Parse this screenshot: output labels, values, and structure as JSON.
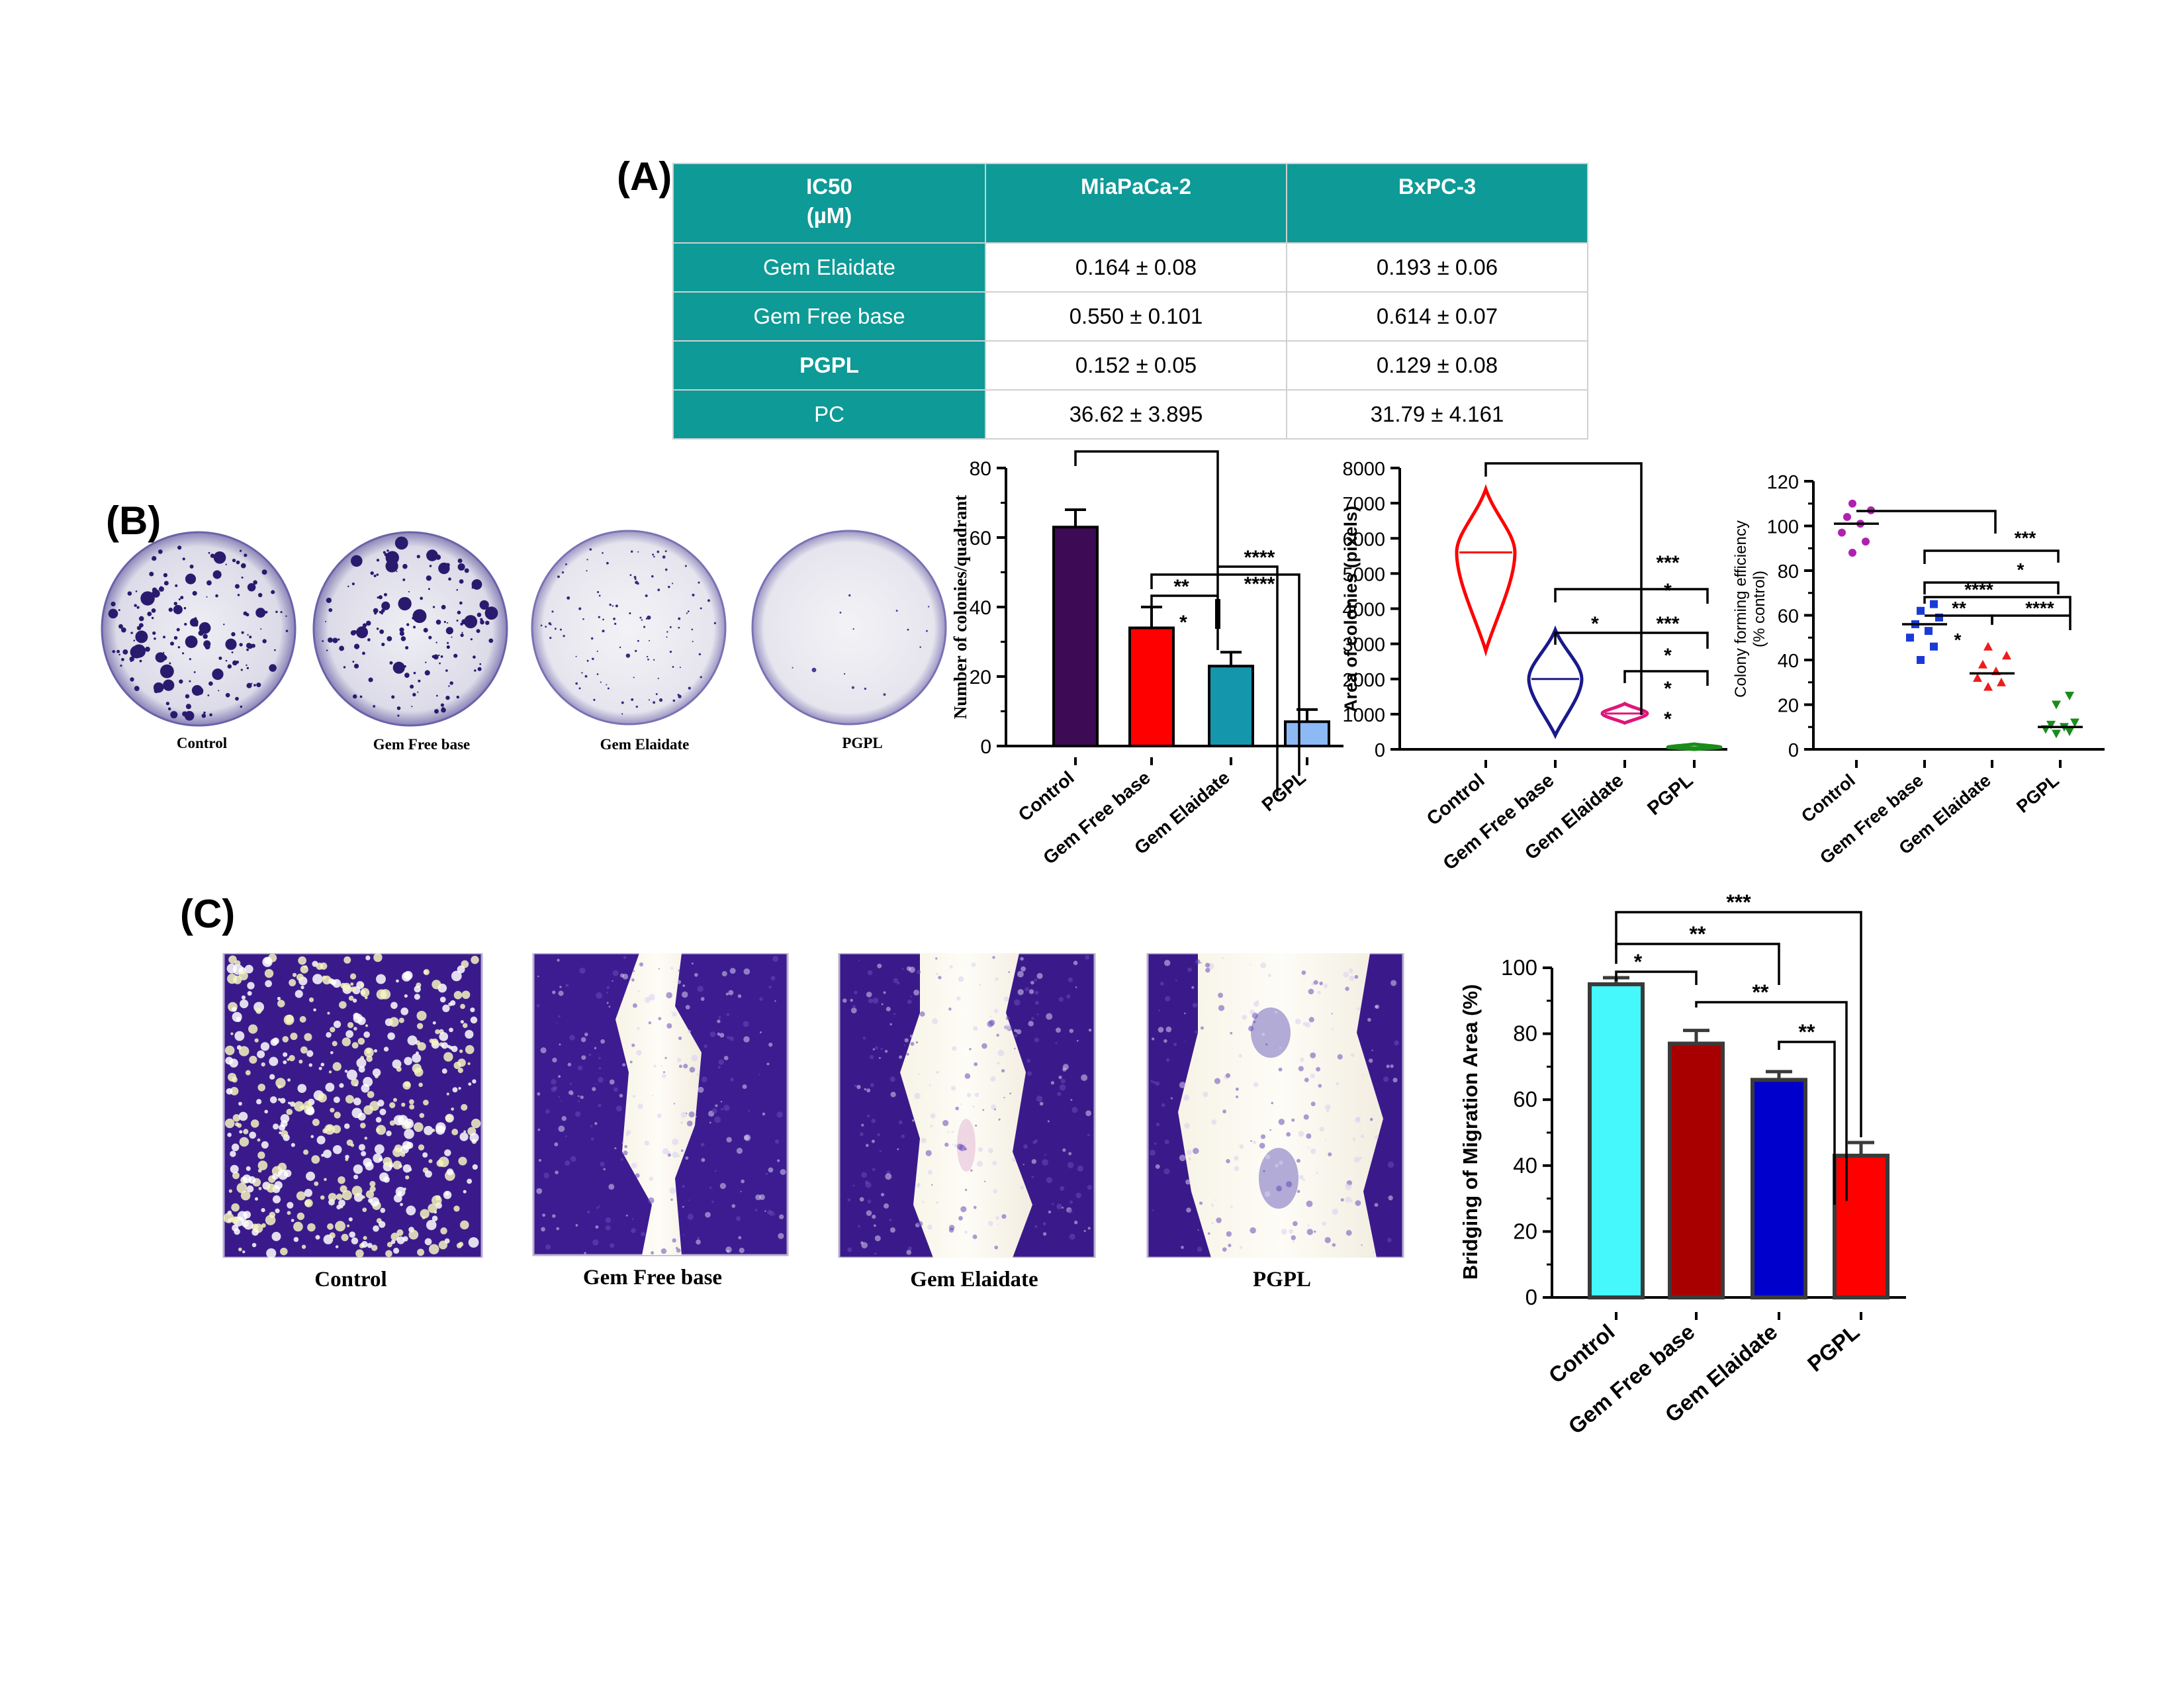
{
  "panels": {
    "a": "(A)",
    "b": "(B)",
    "c": "(C)"
  },
  "ic50_table": {
    "header": {
      "corner_line1": "IC50",
      "corner_line2": "(µM)",
      "col1": "MiaPaCa-2",
      "col2": "BxPC-3"
    },
    "rows": [
      {
        "name": "Gem Elaidate",
        "v1": "0.164 ± 0.08",
        "v2": "0.193 ± 0.06",
        "bold": false
      },
      {
        "name": "Gem Free base",
        "v1": "0.550 ± 0.101",
        "v2": "0.614 ± 0.07",
        "bold": false
      },
      {
        "name": "PGPL",
        "v1": "0.152 ± 0.05",
        "v2": "0.129 ± 0.08",
        "bold": true
      },
      {
        "name": "PC",
        "v1": "36.62 ± 3.895",
        "v2": "31.79 ± 4.161",
        "bold": false
      }
    ]
  },
  "dish_labels": [
    "Control",
    "Gem Free base",
    "Gem Elaidate",
    "PGPL"
  ],
  "wound_labels": [
    "Control",
    "Gem Free base",
    "Gem Elaidate",
    "PGPL"
  ],
  "colors": {
    "teal": "#0e9a96",
    "control_bar": "#3d0a55",
    "free_base": "#ff0000",
    "elaidate": "#1496ac",
    "pgpl": "#8db9f5",
    "violin_control": "#ff0000",
    "violin_free": "#1a1a8c",
    "violin_elaidate": "#e0157a",
    "violin_pgpl": "#1a8c1a",
    "dot_control": "#b020b0",
    "dot_free": "#1a3ad8",
    "dot_elaidate": "#ee1c1c",
    "dot_pgpl": "#1a8c1a",
    "c_control": "#44f8fc",
    "c_free": "#a80000",
    "c_elaidate": "#0000cc",
    "c_pgpl": "#ff0000"
  },
  "chart_data": [
    {
      "type": "bar",
      "panel": "B",
      "categories": [
        "Control",
        "Gem Free base",
        "Gem Elaidate",
        "PGPL"
      ],
      "values": [
        63,
        34,
        23,
        7
      ],
      "errors": [
        5,
        6,
        4,
        3.5
      ],
      "ylabel": "Number of colonies/quadrant",
      "ylim": [
        0,
        80
      ],
      "yticks": [
        "0",
        "20",
        "40",
        "60",
        "80"
      ],
      "significance": [
        "****",
        "****",
        "**",
        "*"
      ]
    },
    {
      "type": "violin",
      "panel": "B",
      "categories": [
        "Control",
        "Gem Free base",
        "Gem Elaidate",
        "PGPL"
      ],
      "medians": [
        5600,
        2000,
        1020,
        60
      ],
      "ranges": [
        [
          2800,
          7400
        ],
        [
          400,
          3400
        ],
        [
          750,
          1300
        ],
        [
          0,
          150
        ]
      ],
      "ylabel": "Area of colonies (pixels)",
      "ylim": [
        0,
        8000
      ],
      "yticks": [
        "0",
        "1000",
        "2000",
        "3000",
        "4000",
        "5000",
        "6000",
        "7000",
        "8000"
      ],
      "significance": [
        "***",
        "*",
        "***",
        "*",
        "*",
        "*",
        "*"
      ]
    },
    {
      "type": "scatter",
      "panel": "B",
      "categories": [
        "Control",
        "Gem Free base",
        "Gem Elaidate",
        "PGPL"
      ],
      "points": [
        [
          88,
          93,
          97,
          101,
          104,
          107,
          110
        ],
        [
          40,
          46,
          50,
          53,
          56,
          59,
          62,
          65
        ],
        [
          28,
          30,
          32,
          35,
          38,
          42,
          46
        ],
        [
          7,
          8,
          9,
          10,
          11,
          12,
          20,
          24
        ]
      ],
      "means": [
        101,
        56,
        34,
        10
      ],
      "ylabel_line1": "Colony forming efficiency",
      "ylabel_line2": "(% control)",
      "ylim": [
        0,
        120
      ],
      "yticks": [
        "0",
        "20",
        "40",
        "60",
        "80",
        "100",
        "120"
      ],
      "significance": [
        "***",
        "*",
        "****",
        "**",
        "****",
        "*"
      ]
    },
    {
      "type": "bar",
      "panel": "C",
      "categories": [
        "Control",
        "Gem Free base",
        "Gem Elaidate",
        "PGPL"
      ],
      "values": [
        95,
        77,
        66,
        43
      ],
      "errors": [
        2,
        4,
        2.5,
        4
      ],
      "ylabel": "Bridging of Migration Area (%)",
      "ylim": [
        0,
        100
      ],
      "yticks": [
        "0",
        "20",
        "40",
        "60",
        "80",
        "100"
      ],
      "significance": [
        "***",
        "**",
        "*",
        "**",
        "**"
      ]
    }
  ]
}
